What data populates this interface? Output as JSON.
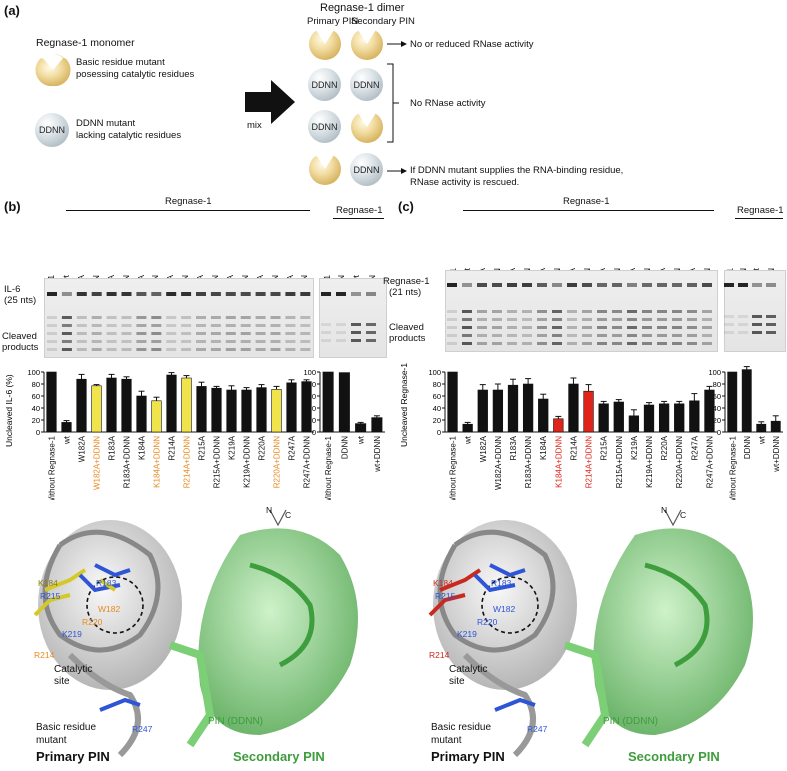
{
  "panel_a": {
    "label": "(a)",
    "monomer_title": "Regnase-1 monomer",
    "basic_mutant_text": "Basic residue mutant posessing catalytic residues",
    "basic_mutant_line1": "Basic residue mutant",
    "basic_mutant_line2": "posessing catalytic residues",
    "ddnn_mutant_line1": "DDNN mutant",
    "ddnn_mutant_line2": "lacking catalytic residues",
    "ddnn_tag": "DDNN",
    "mix_label": "mix",
    "dimer_title": "Regnase-1 dimer",
    "primary_pin": "Primary PIN",
    "secondary_pin": "Secondary PIN",
    "outcome_1": "No or reduced RNase activity",
    "outcome_2": "No RNase activity",
    "outcome_3_line1": "If DDNN mutant supplies the RNA-binding residue,",
    "outcome_3_line2": "RNase activity is rescued."
  },
  "panel_b": {
    "label": "(b)",
    "regnase_header": "Regnase-1",
    "without_label": "Without Regnase-1",
    "lanes": [
      "wt",
      "W182A",
      "W182A+DDNN",
      "R183A",
      "R183A+DDNN",
      "K184A",
      "K184A+DDNN",
      "R214A",
      "R214A+DDNN",
      "R215A",
      "R215A+DDNN",
      "K219A",
      "K219A+DDNN",
      "R220A",
      "R220A+DDNN",
      "R247A",
      "R247A+DDNN"
    ],
    "side_lanes": [
      "DDNN",
      "wt",
      "wt+DDNN"
    ],
    "il6_label_line1": "IL-6",
    "il6_label_line2": "(25 nts)",
    "cleaved_line1": "Cleaved",
    "cleaved_line2": "products",
    "highlight_color": "#e8891f"
  },
  "panel_c": {
    "label": "(c)",
    "regnase_header": "Regnase-1",
    "without_label": "Without Regnase-1",
    "lanes": [
      "wt",
      "W182A",
      "W182A+DDNN",
      "R183A",
      "R183A+DDNN",
      "K184A",
      "K184A+DDNN",
      "R214A",
      "R214A+DDNN",
      "R215A",
      "R215A+DDNN",
      "K219A",
      "K219A+DDNN",
      "R220A",
      "R220A+DDNN",
      "R247A",
      "R247A+DDNN"
    ],
    "side_lanes": [
      "DDNN",
      "wt",
      "wt+DDNN"
    ],
    "substrate_line1": "Regnase-1",
    "substrate_line2": "(21 nts)",
    "cleaved_line1": "Cleaved",
    "cleaved_line2": "products",
    "highlight_color": "#e0241b"
  },
  "structure_b": {
    "residues": [
      "K184",
      "R183",
      "R215",
      "W182",
      "R220",
      "K219",
      "R214",
      "R247"
    ],
    "catalytic_line1": "Catalytic",
    "catalytic_line2": "site",
    "basic_line1": "Basic residue",
    "basic_line2": "mutant",
    "primary_pin": "Primary PIN",
    "pin_ddnn": "PIN (DDNN)",
    "secondary_pin": "Secondary PIN",
    "n_term": "N",
    "c_term": "C"
  },
  "structure_c": {
    "residues": [
      "K184",
      "R183",
      "R215",
      "W182",
      "R220",
      "K219",
      "R214",
      "R247"
    ],
    "catalytic_line1": "Catalytic",
    "catalytic_line2": "site",
    "basic_line1": "Basic residue",
    "basic_line2": "mutant",
    "primary_pin": "Primary PIN",
    "pin_ddnn": "PIN (DDNN)",
    "secondary_pin": "Secondary PIN",
    "n_term": "N",
    "c_term": "C"
  },
  "chart_data": [
    {
      "type": "bar",
      "title": "",
      "ylabel": "Uncleaved IL-6 (%)",
      "ylim": [
        0,
        100
      ],
      "yticks": [
        0,
        20,
        40,
        60,
        80,
        100
      ],
      "categories": [
        "Without Regnase-1",
        "wt",
        "W182A",
        "W182A+DDNN",
        "R183A",
        "R183A+DDNN",
        "K184A",
        "K184A+DDNN",
        "R214A",
        "R214A+DDNN",
        "R215A",
        "R215A+DDNN",
        "K219A",
        "K219A+DDNN",
        "R220A",
        "R220A+DDNN",
        "R247A",
        "R247A+DDNN"
      ],
      "values": [
        100,
        16,
        88,
        77,
        90,
        88,
        60,
        52,
        95,
        90,
        76,
        73,
        70,
        70,
        74,
        71,
        82,
        84
      ],
      "errors": [
        0,
        3,
        8,
        2,
        6,
        4,
        8,
        6,
        4,
        4,
        7,
        3,
        7,
        4,
        5,
        5,
        5,
        3
      ],
      "highlighted": [
        "W182A+DDNN",
        "K184A+DDNN",
        "R214A+DDNN",
        "R220A+DDNN"
      ],
      "highlight_color": "#f0e44a",
      "side": {
        "categories": [
          "Without Regnase-1",
          "DDNN",
          "wt",
          "wt+DDNN"
        ],
        "values": [
          100,
          99,
          14,
          24
        ],
        "errors": [
          0,
          0,
          2,
          3
        ]
      }
    },
    {
      "type": "bar",
      "title": "",
      "ylabel": "Uncleaved Regnase-1 (%)",
      "ylim": [
        0,
        100
      ],
      "yticks": [
        0,
        20,
        40,
        60,
        80,
        100
      ],
      "categories": [
        "Without Regnase-1",
        "wt",
        "W182A",
        "W182A+DDNN",
        "R183A",
        "R183A+DDNN",
        "K184A",
        "K184A+DDNN",
        "R214A",
        "R214A+DDNN",
        "R215A",
        "R215A+DDNN",
        "K219A",
        "K219A+DDNN",
        "R220A",
        "R220A+DDNN",
        "R247A",
        "R247A+DDNN"
      ],
      "values": [
        100,
        13,
        70,
        70,
        78,
        80,
        55,
        22,
        80,
        68,
        47,
        50,
        27,
        45,
        47,
        47,
        52,
        70
      ],
      "errors": [
        0,
        3,
        9,
        10,
        10,
        9,
        8,
        4,
        10,
        11,
        4,
        4,
        10,
        4,
        4,
        4,
        12,
        6
      ],
      "highlighted": [
        "K184A+DDNN",
        "R214A+DDNN"
      ],
      "highlight_color": "#e0241b",
      "side": {
        "categories": [
          "Without Regnase-1",
          "DDNN",
          "wt",
          "wt+DDNN"
        ],
        "values": [
          100,
          104,
          13,
          18
        ],
        "errors": [
          0,
          5,
          4,
          9
        ]
      }
    }
  ]
}
